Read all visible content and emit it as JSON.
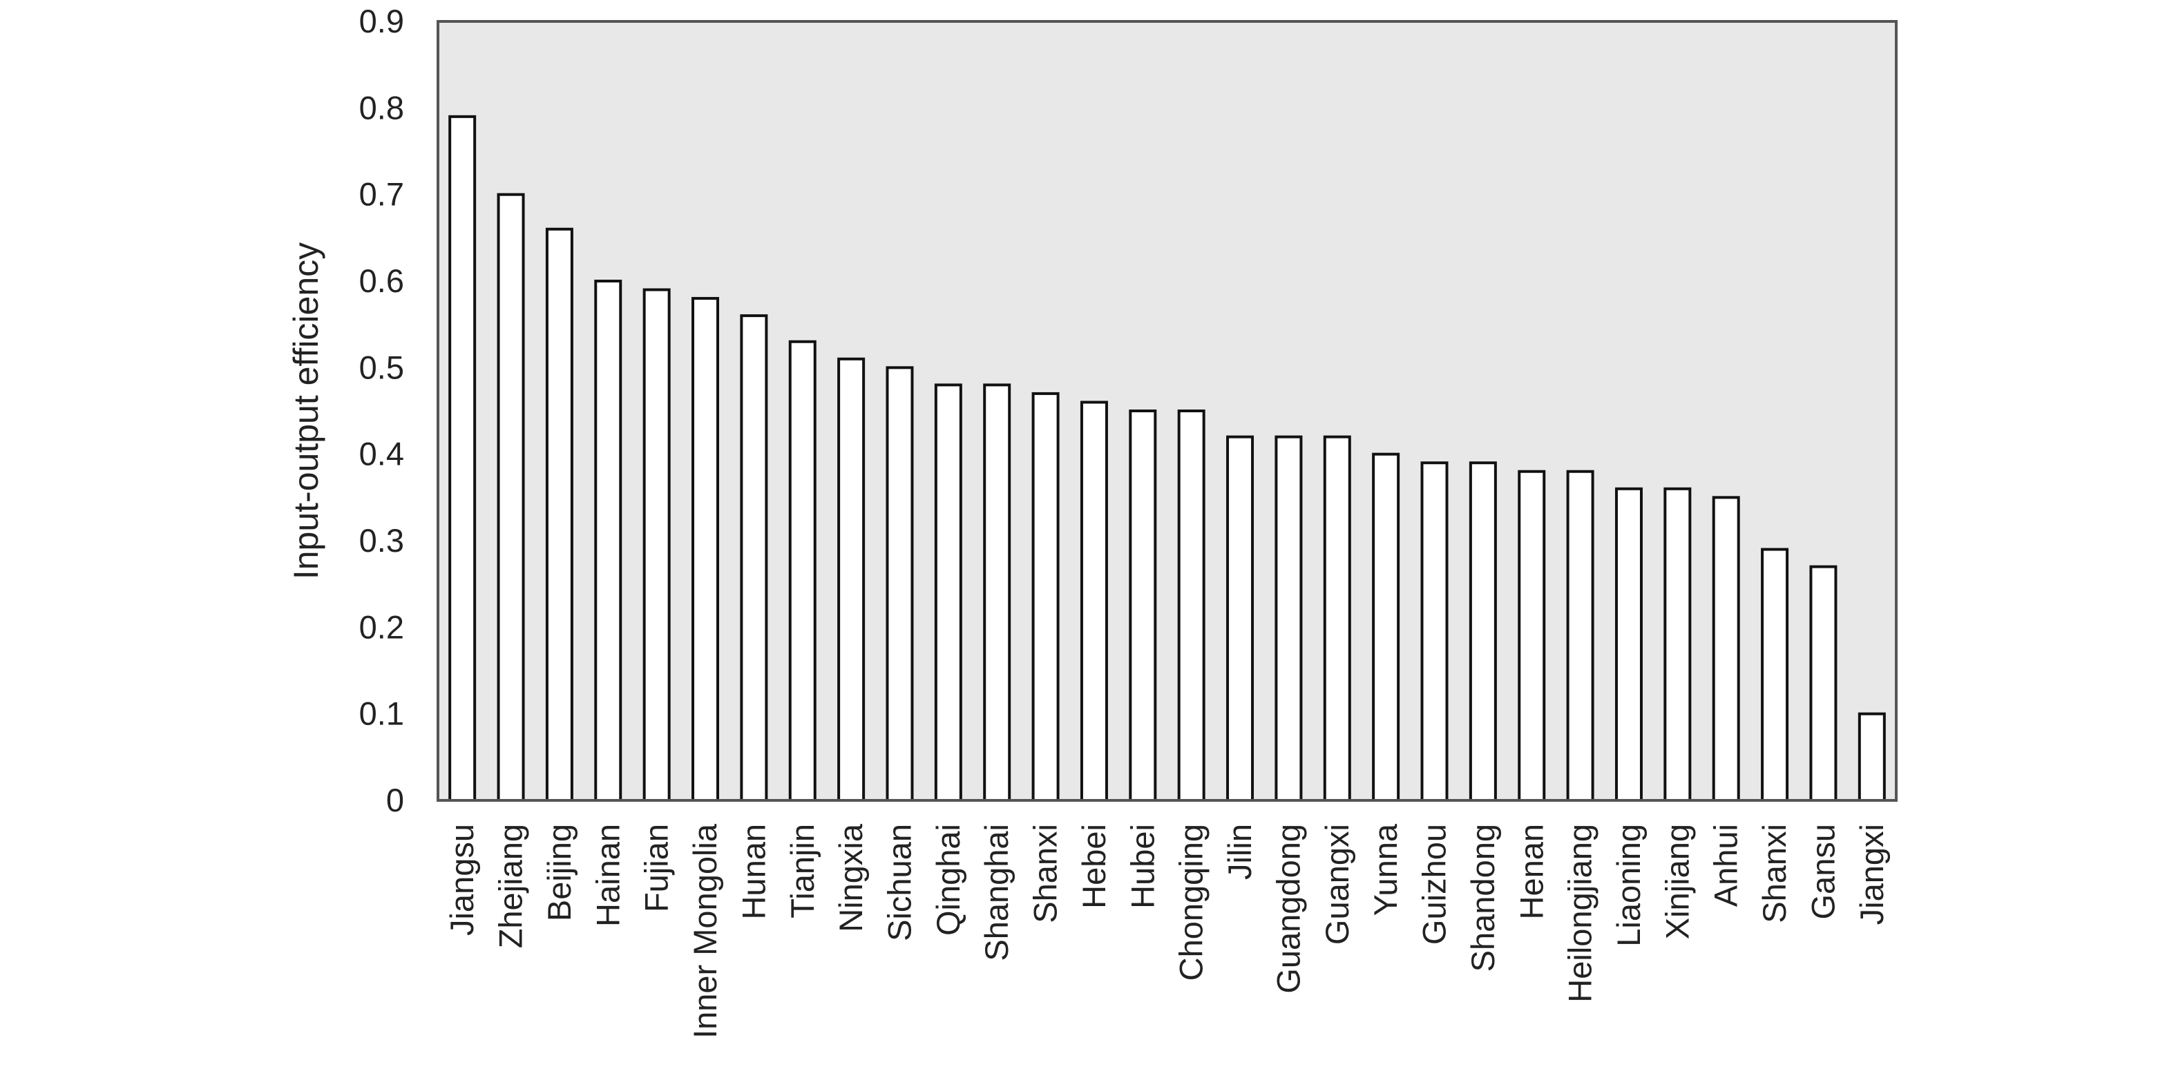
{
  "chart_data": {
    "type": "bar",
    "ylabel": "Input-output efficiency",
    "ylim": [
      0,
      0.9
    ],
    "yticks": [
      "0",
      "0.1",
      "0.2",
      "0.3",
      "0.4",
      "0.5",
      "0.6",
      "0.7",
      "0.8",
      "0.9"
    ],
    "grid": false,
    "categories": [
      "Jiangsu",
      "Zhejiang",
      "Beijing",
      "Hainan",
      "Fujian",
      "Inner Mongolia",
      "Hunan",
      "Tianjin",
      "Ningxia",
      "Sichuan",
      "Qinghai",
      "Shanghai",
      "Shanxi",
      "Hebei",
      "Hubei",
      "Chongqing",
      "Jilin",
      "Guangdong",
      "Guangxi",
      "Yunna",
      "Guizhou",
      "Shandong",
      "Henan",
      "Heilongjiang",
      "Liaoning",
      "Xinjiang",
      "Anhui",
      "Shanxi",
      "Gansu",
      "Jiangxi"
    ],
    "values": [
      0.79,
      0.7,
      0.66,
      0.6,
      0.59,
      0.58,
      0.56,
      0.53,
      0.51,
      0.5,
      0.48,
      0.48,
      0.47,
      0.46,
      0.45,
      0.45,
      0.42,
      0.42,
      0.42,
      0.4,
      0.39,
      0.39,
      0.38,
      0.38,
      0.36,
      0.36,
      0.35,
      0.29,
      0.27,
      0.1
    ],
    "colors": {
      "bar_fill": "#ffffff",
      "bar_stroke": "#111111",
      "plot_background": "#e8e8e8"
    }
  }
}
